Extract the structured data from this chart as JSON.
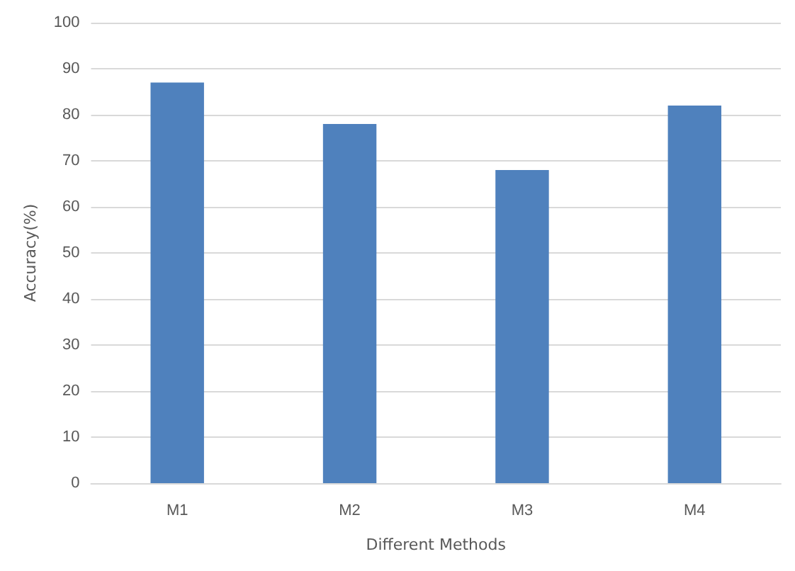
{
  "chart_data": {
    "type": "bar",
    "xlabel": "Different Methods",
    "ylabel": "Accuracy(%)",
    "categories": [
      "M1",
      "M2",
      "M3",
      "M4"
    ],
    "values": [
      87,
      78,
      68,
      82
    ],
    "color": "#4f81bd",
    "ylim": [
      0,
      100
    ],
    "yticks": [
      0,
      10,
      20,
      30,
      40,
      50,
      60,
      70,
      80,
      90,
      100
    ],
    "grid": "y"
  }
}
